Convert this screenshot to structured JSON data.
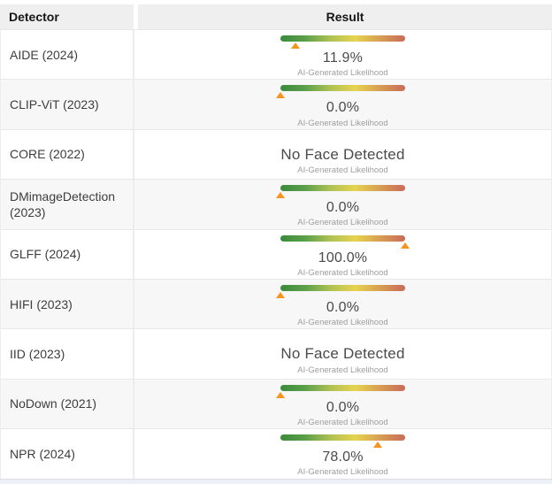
{
  "header": {
    "detector_label": "Detector",
    "result_label": "Result"
  },
  "gauge": {
    "sub_label": "AI-Generated Likelihood",
    "marker_color": "#f7941e",
    "marker_icon": "triangle-up-icon",
    "gradient": [
      "#3a8a3e",
      "#5ba04a",
      "#aec153",
      "#e6d44f",
      "#d89d52",
      "#c96b59"
    ]
  },
  "rows": [
    {
      "detector": "AIDE (2024)",
      "result": "11.9%",
      "likelihood_pct": 11.9,
      "no_face": false
    },
    {
      "detector": "CLIP-ViT (2023)",
      "result": "0.0%",
      "likelihood_pct": 0.0,
      "no_face": false
    },
    {
      "detector": "CORE (2022)",
      "result": "No Face Detected",
      "likelihood_pct": null,
      "no_face": true
    },
    {
      "detector": "DMimageDetection (2023)",
      "result": "0.0%",
      "likelihood_pct": 0.0,
      "no_face": false
    },
    {
      "detector": "GLFF (2024)",
      "result": "100.0%",
      "likelihood_pct": 100.0,
      "no_face": false
    },
    {
      "detector": "HIFI (2023)",
      "result": "0.0%",
      "likelihood_pct": 0.0,
      "no_face": false
    },
    {
      "detector": "IID (2023)",
      "result": "No Face Detected",
      "likelihood_pct": null,
      "no_face": true
    },
    {
      "detector": "NoDown (2021)",
      "result": "0.0%",
      "likelihood_pct": 0.0,
      "no_face": false
    },
    {
      "detector": "NPR (2024)",
      "result": "78.0%",
      "likelihood_pct": 78.0,
      "no_face": false
    }
  ],
  "colors": {
    "header_bg": "#efefef",
    "row_bg": "#ffffff",
    "row_alt_bg": "#f7f7f7",
    "border": "#e8e8e8",
    "value_text": "#4a4a4a",
    "sub_text": "#9e9e9e",
    "bottom_strip_bg": "#edf1f7"
  }
}
